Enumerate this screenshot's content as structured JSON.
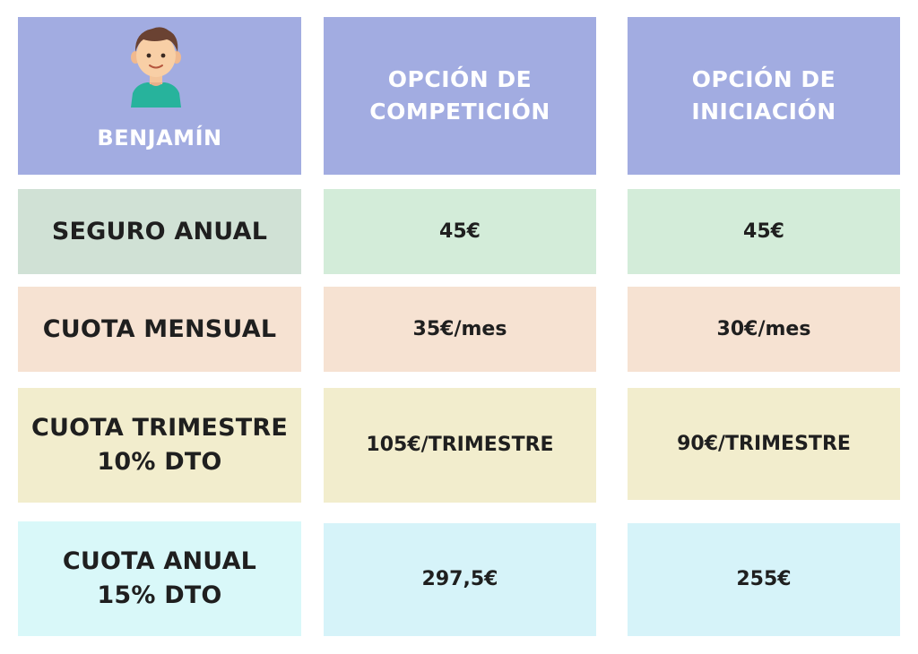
{
  "header": {
    "category": "BENJAMÍN",
    "option_competition": [
      "OPCIÓN DE",
      "COMPETICIÓN"
    ],
    "option_initiation": [
      "OPCIÓN DE",
      "INICIACIÓN"
    ],
    "avatar_icon": "boy-avatar-icon"
  },
  "rows": {
    "seguro": {
      "label": "SEGURO ANUAL",
      "competition": "45€",
      "initiation": "45€"
    },
    "mensual": {
      "label": "CUOTA MENSUAL",
      "competition": "35€/mes",
      "initiation": "30€/mes"
    },
    "trimestre": {
      "label": [
        "CUOTA TRIMESTRE",
        "10% DTO"
      ],
      "competition": "105€/TRIMESTRE",
      "initiation": "90€/TRIMESTRE"
    },
    "anual": {
      "label": [
        "CUOTA ANUAL",
        "15% DTO"
      ],
      "competition": "297,5€",
      "initiation": "255€"
    }
  },
  "colors": {
    "header_bg": "#a2ace1",
    "seguro_bg": "#d0e1d5",
    "mensual_bg": "#f6e2d2",
    "trimestre_bg": "#f2edcd",
    "anual_bg": "#d9f8f9"
  }
}
